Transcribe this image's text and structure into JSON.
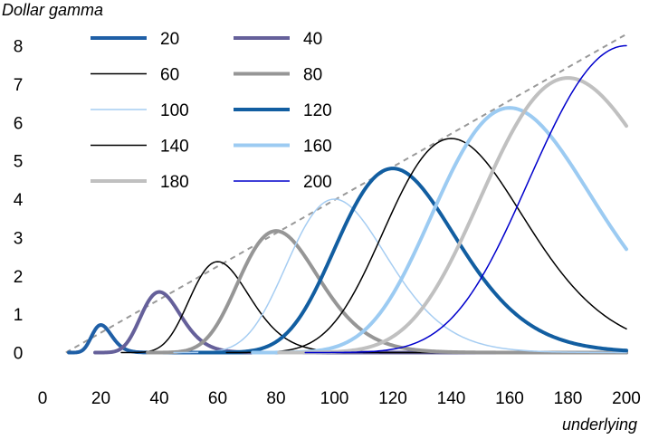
{
  "chart_data": {
    "type": "line",
    "title": "",
    "ylabel": "Dollar gamma",
    "xlabel": "underlying",
    "xlim": [
      0,
      200
    ],
    "ylim": [
      0,
      8
    ],
    "x_ticks": [
      0,
      20,
      40,
      60,
      80,
      100,
      120,
      140,
      160,
      180,
      200
    ],
    "y_ticks": [
      0,
      1,
      2,
      3,
      4,
      5,
      6,
      7,
      8
    ],
    "grid": false,
    "legend_position": "top-left",
    "legend_columns": 2,
    "envelope": {
      "style": "dashed",
      "color": "#999999",
      "x": [
        8,
        200
      ],
      "y": [
        0,
        8.3
      ]
    },
    "series": [
      {
        "name": "20",
        "strike": 20,
        "peak": 0.72,
        "color": "#1F5FA6",
        "width": 4
      },
      {
        "name": "40",
        "strike": 40,
        "peak": 1.58,
        "color": "#65609A",
        "width": 4
      },
      {
        "name": "60",
        "strike": 60,
        "peak": 2.37,
        "color": "#000000",
        "width": 1.5
      },
      {
        "name": "80",
        "strike": 80,
        "peak": 3.17,
        "color": "#969696",
        "width": 4
      },
      {
        "name": "100",
        "strike": 100,
        "peak": 4.0,
        "color": "#A6CDF2",
        "width": 1.5
      },
      {
        "name": "120",
        "strike": 120,
        "peak": 4.8,
        "color": "#125EA1",
        "width": 4
      },
      {
        "name": "140",
        "strike": 140,
        "peak": 5.58,
        "color": "#000000",
        "width": 1.5
      },
      {
        "name": "160",
        "strike": 160,
        "peak": 6.38,
        "color": "#9CCBF2",
        "width": 4
      },
      {
        "name": "180",
        "strike": 180,
        "peak": 7.16,
        "color": "#C0C0C0",
        "width": 4
      },
      {
        "name": "200",
        "strike": 200,
        "peak": 8.0,
        "color": "#0000CC",
        "width": 1.5
      }
    ]
  }
}
